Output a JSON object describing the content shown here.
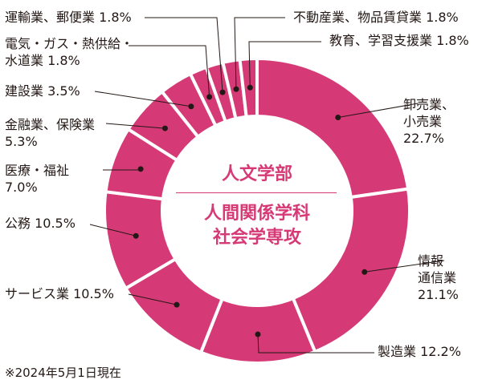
{
  "chart_data": {
    "type": "donut",
    "center_title": "人文学部",
    "center_subtitle_1": "人間関係学科",
    "center_subtitle_2": "社会学専攻",
    "footnote": "※2024年5月1日現在",
    "colors": {
      "slice": "#d63a76",
      "separator": "#ffffff",
      "center_text": "#d63a76",
      "leader": "#231815"
    },
    "slices": [
      {
        "label_lines": [
          "卸売業、",
          "小売業"
        ],
        "value_text": "22.7%",
        "value": 22.7
      },
      {
        "label_lines": [
          "情報",
          "通信業"
        ],
        "value_text": "21.1%",
        "value": 21.1
      },
      {
        "label_lines": [
          "製造業 12.2%"
        ],
        "value_text": "",
        "value": 12.2
      },
      {
        "label_lines": [
          "サービス業 10.5%"
        ],
        "value_text": "",
        "value": 10.5
      },
      {
        "label_lines": [
          "公務 10.5%"
        ],
        "value_text": "",
        "value": 10.5
      },
      {
        "label_lines": [
          "医療・福祉"
        ],
        "value_text": "7.0%",
        "value": 7.0
      },
      {
        "label_lines": [
          "金融業、保険業"
        ],
        "value_text": "5.3%",
        "value": 5.3
      },
      {
        "label_lines": [
          "建設業 3.5%"
        ],
        "value_text": "",
        "value": 3.5
      },
      {
        "label_lines": [
          "電気・ガス・熱供給・",
          "水道業 1.8%"
        ],
        "value_text": "",
        "value": 1.8
      },
      {
        "label_lines": [
          "運輸業、郵便業 1.8%"
        ],
        "value_text": "",
        "value": 1.8
      },
      {
        "label_lines": [
          "不動産業、物品賃貸業 1.8%"
        ],
        "value_text": "",
        "value": 1.8
      },
      {
        "label_lines": [
          "教育、学習支援業 1.8%"
        ],
        "value_text": "",
        "value": 1.8
      }
    ]
  }
}
